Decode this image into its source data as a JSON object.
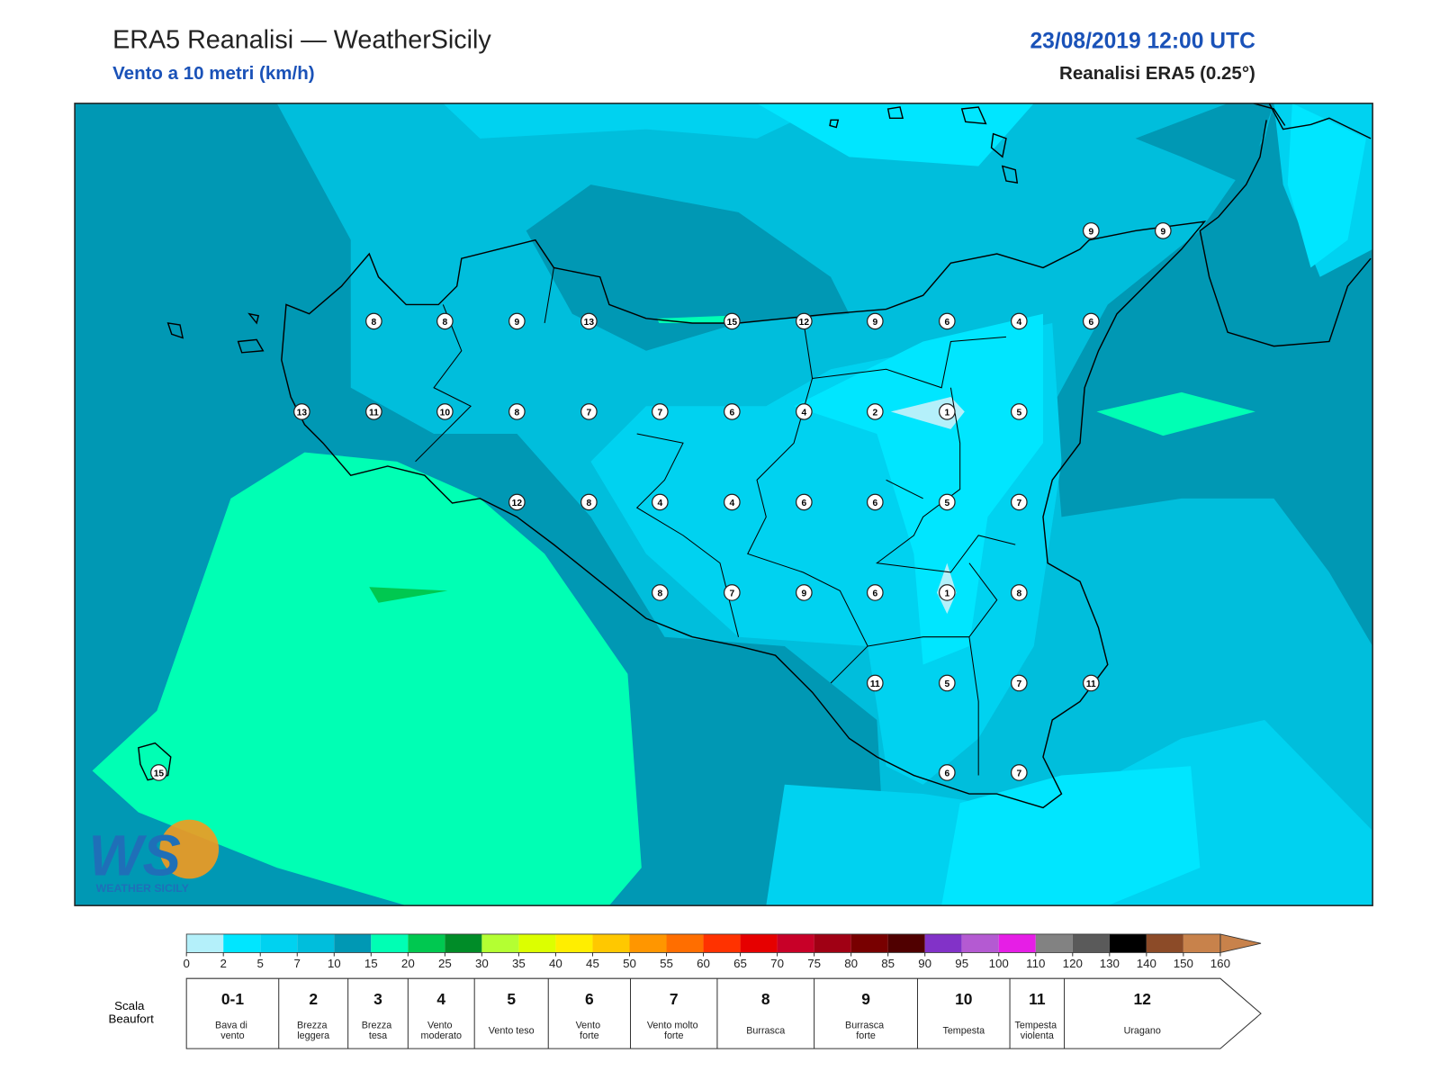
{
  "header": {
    "title": "ERA5 Reanalisi — WeatherSicily",
    "subtitle": "Vento a 10 metri (km/h)",
    "datetime": "23/08/2019 12:00 UTC",
    "source": "Reanalisi ERA5 (0.25°)"
  },
  "map": {
    "stations": [
      8,
      8,
      9,
      13,
      15,
      12,
      9,
      6,
      4,
      6,
      9,
      9,
      13,
      11,
      10,
      8,
      7,
      7,
      6,
      4,
      2,
      1,
      5,
      12,
      8,
      4,
      4,
      6,
      6,
      5,
      7,
      8,
      7,
      9,
      6,
      1,
      8,
      11,
      5,
      7,
      11,
      6,
      7,
      15
    ]
  },
  "colorbar": {
    "ticks": [
      0,
      2,
      5,
      7,
      10,
      15,
      20,
      25,
      30,
      35,
      40,
      45,
      50,
      55,
      60,
      65,
      70,
      75,
      80,
      85,
      90,
      95,
      100,
      110,
      120,
      130,
      140,
      150,
      160
    ],
    "colors": [
      "#b4f0fa",
      "#00e6ff",
      "#00d2f0",
      "#00bedc",
      "#0098b4",
      "#00ffb4",
      "#00c850",
      "#008c28",
      "#b4ff32",
      "#dcff00",
      "#ffee00",
      "#ffc800",
      "#ff9600",
      "#ff6e00",
      "#ff3200",
      "#e60000",
      "#c80028",
      "#a00014",
      "#780000",
      "#500000",
      "#8232c8",
      "#b45ad2",
      "#e61ee6",
      "#828282",
      "#5a5a5a",
      "#000000",
      "#8c4b28",
      "#c8824b"
    ]
  },
  "beaufort": {
    "title": "Scala Beaufort",
    "forces": [
      {
        "force": "0-1",
        "label": "Bava di vento"
      },
      {
        "force": "2",
        "label": "Brezza leggera"
      },
      {
        "force": "3",
        "label": "Brezza tesa"
      },
      {
        "force": "4",
        "label": "Vento moderato"
      },
      {
        "force": "5",
        "label": "Vento teso"
      },
      {
        "force": "6",
        "label": "Vento forte"
      },
      {
        "force": "7",
        "label": "Vento molto forte"
      },
      {
        "force": "8",
        "label": "Burrasca"
      },
      {
        "force": "9",
        "label": "Burrasca forte"
      },
      {
        "force": "10",
        "label": "Tempesta"
      },
      {
        "force": "11",
        "label": "Tempesta violenta"
      },
      {
        "force": "12",
        "label": "Uragano"
      }
    ]
  },
  "logo": {
    "mark": "WS",
    "name": "WEATHER SICILY"
  }
}
